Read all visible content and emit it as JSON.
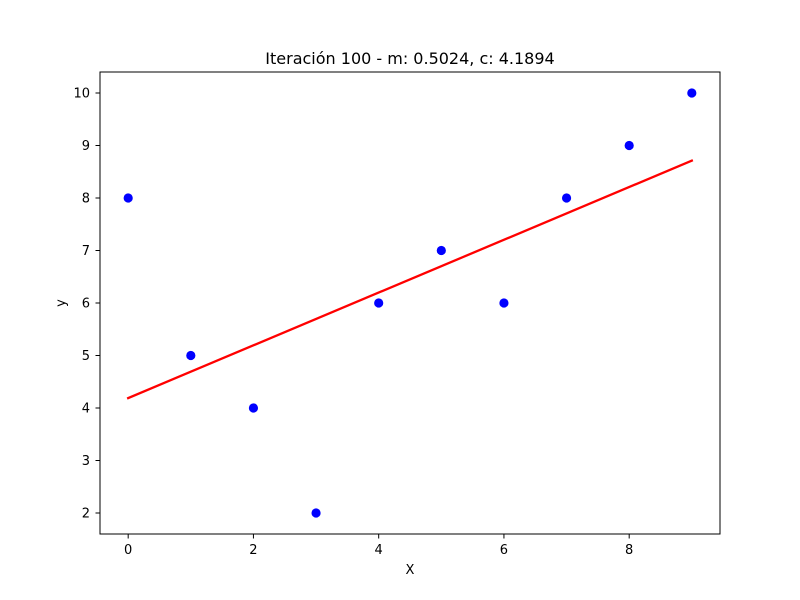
{
  "chart_data": {
    "type": "scatter",
    "title": "Iteración 100 - m: 0.5024, c: 4.1894",
    "xlabel": "X",
    "ylabel": "y",
    "xlim": [
      -0.45,
      9.45
    ],
    "ylim": [
      1.6,
      10.4
    ],
    "xticks": [
      0,
      2,
      4,
      6,
      8
    ],
    "yticks": [
      2,
      3,
      4,
      5,
      6,
      7,
      8,
      9,
      10
    ],
    "grid": false,
    "series": [
      {
        "kind": "scatter",
        "color": "#0000ff",
        "x": [
          0,
          1,
          2,
          3,
          4,
          5,
          6,
          7,
          8,
          9
        ],
        "y": [
          8,
          5,
          4,
          2,
          6,
          7,
          6,
          8,
          9,
          10
        ]
      },
      {
        "kind": "line",
        "color": "#ff0000",
        "m": 0.5024,
        "c": 4.1894,
        "x": [
          0,
          9
        ],
        "y": [
          4.1894,
          8.711
        ]
      }
    ]
  }
}
